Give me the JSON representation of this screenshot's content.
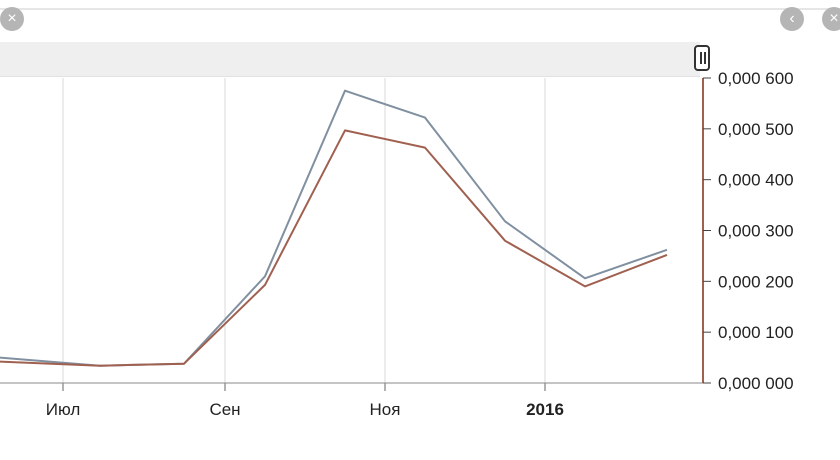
{
  "chart_data": {
    "type": "line",
    "x_ticks": [
      "Июл",
      "Сен",
      "Ноя",
      "2016"
    ],
    "x_tick_bold": [
      false,
      false,
      false,
      true
    ],
    "y_ticks": [
      "0,000 000",
      "0,000 100",
      "0,000 200",
      "0,000 300",
      "0,000 400",
      "0,000 500",
      "0,000 600"
    ],
    "ylim": [
      0,
      600
    ],
    "grid": "vertical",
    "colors": [
      "#8090a0",
      "#a06050"
    ],
    "series": [
      {
        "values": [
          50,
          34,
          38,
          210,
          575,
          522,
          318,
          206,
          262
        ]
      },
      {
        "values": [
          42,
          34,
          38,
          193,
          497,
          463,
          280,
          190,
          252
        ]
      }
    ]
  },
  "ui": {
    "close_icon": "×",
    "prev_icon": "‹",
    "close2_icon": "×"
  }
}
